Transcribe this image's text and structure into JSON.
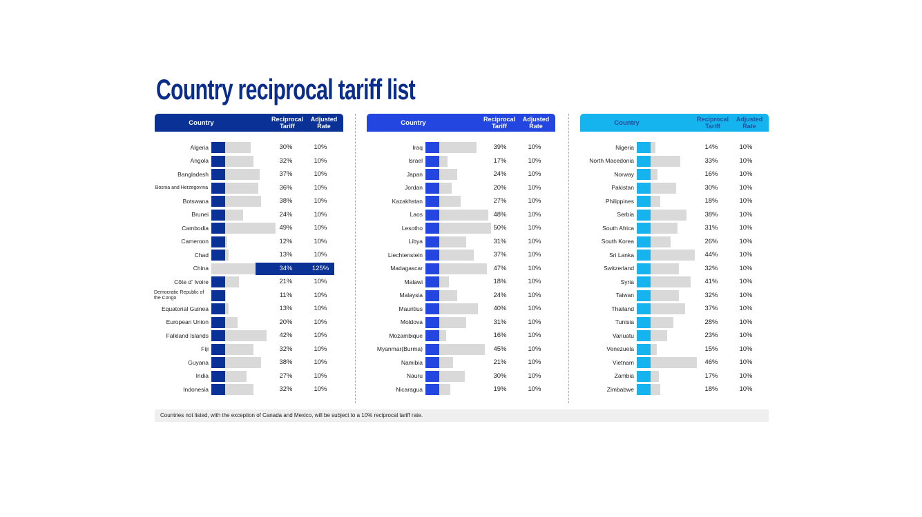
{
  "title": "Country reciprocal tariff list",
  "headers": {
    "country": "Country",
    "tariff_line1": "Reciprocal",
    "tariff_line2": "Tariff",
    "adjusted_line1": "Adjusted",
    "adjusted_line2": "Rate"
  },
  "footer": "Countries not listed, with the exception of Canada and Mexico, will be subject to a 10% reciprocal tariff rate.",
  "colors": {
    "col1": "#0a3195",
    "col2": "#2446e0",
    "col3": "#16b4ef",
    "col3_header_text": "#1f4e9a",
    "bar_gray": "#d9d9d9"
  },
  "chart_data": {
    "type": "bar",
    "title": "Country reciprocal tariff list",
    "baseline_rate": 10,
    "unit": "%",
    "columns": [
      {
        "rows": [
          {
            "country": "Algeria",
            "tariff": 30,
            "adjusted": 10,
            "tariff_label": "30%",
            "adjusted_label": "10%"
          },
          {
            "country": "Angola",
            "tariff": 32,
            "adjusted": 10,
            "tariff_label": "32%",
            "adjusted_label": "10%"
          },
          {
            "country": "Bangladesh",
            "tariff": 37,
            "adjusted": 10,
            "tariff_label": "37%",
            "adjusted_label": "10%"
          },
          {
            "country": "Bosnia and Herzegovina",
            "tariff": 36,
            "adjusted": 10,
            "tariff_label": "36%",
            "adjusted_label": "10%"
          },
          {
            "country": "Botswana",
            "tariff": 38,
            "adjusted": 10,
            "tariff_label": "38%",
            "adjusted_label": "10%"
          },
          {
            "country": "Brunei",
            "tariff": 24,
            "adjusted": 10,
            "tariff_label": "24%",
            "adjusted_label": "10%"
          },
          {
            "country": "Cambodia",
            "tariff": 49,
            "adjusted": 10,
            "tariff_label": "49%",
            "adjusted_label": "10%"
          },
          {
            "country": "Cameroon",
            "tariff": 12,
            "adjusted": 10,
            "tariff_label": "12%",
            "adjusted_label": "10%"
          },
          {
            "country": "Chad",
            "tariff": 13,
            "adjusted": 10,
            "tariff_label": "13%",
            "adjusted_label": "10%"
          },
          {
            "country": "China",
            "tariff": 34,
            "adjusted": 125,
            "tariff_label": "34%",
            "adjusted_label": "125%",
            "highlight": true
          },
          {
            "country": "Côte d' Ivoire",
            "tariff": 21,
            "adjusted": 10,
            "tariff_label": "21%",
            "adjusted_label": "10%"
          },
          {
            "country": "Democratic Republic of the Congo",
            "tariff": 11,
            "adjusted": 10,
            "tariff_label": "11%",
            "adjusted_label": "10%"
          },
          {
            "country": "Equatorial Guinea",
            "tariff": 13,
            "adjusted": 10,
            "tariff_label": "13%",
            "adjusted_label": "10%"
          },
          {
            "country": "European Union",
            "tariff": 20,
            "adjusted": 10,
            "tariff_label": "20%",
            "adjusted_label": "10%"
          },
          {
            "country": "Falkland Islands",
            "tariff": 42,
            "adjusted": 10,
            "tariff_label": "42%",
            "adjusted_label": "10%"
          },
          {
            "country": "Fiji",
            "tariff": 32,
            "adjusted": 10,
            "tariff_label": "32%",
            "adjusted_label": "10%"
          },
          {
            "country": "Guyana",
            "tariff": 38,
            "adjusted": 10,
            "tariff_label": "38%",
            "adjusted_label": "10%"
          },
          {
            "country": "India",
            "tariff": 27,
            "adjusted": 10,
            "tariff_label": "27%",
            "adjusted_label": "10%"
          },
          {
            "country": "Indonesia",
            "tariff": 32,
            "adjusted": 10,
            "tariff_label": "32%",
            "adjusted_label": "10%"
          }
        ]
      },
      {
        "rows": [
          {
            "country": "Iraq",
            "tariff": 39,
            "adjusted": 10,
            "tariff_label": "39%",
            "adjusted_label": "10%"
          },
          {
            "country": "Israel",
            "tariff": 17,
            "adjusted": 10,
            "tariff_label": "17%",
            "adjusted_label": "10%"
          },
          {
            "country": "Japan",
            "tariff": 24,
            "adjusted": 10,
            "tariff_label": "24%",
            "adjusted_label": "10%"
          },
          {
            "country": "Jordan",
            "tariff": 20,
            "adjusted": 10,
            "tariff_label": "20%",
            "adjusted_label": "10%"
          },
          {
            "country": "Kazakhstan",
            "tariff": 27,
            "adjusted": 10,
            "tariff_label": "27%",
            "adjusted_label": "10%"
          },
          {
            "country": "Laos",
            "tariff": 48,
            "adjusted": 10,
            "tariff_label": "48%",
            "adjusted_label": "10%"
          },
          {
            "country": "Lesotho",
            "tariff": 50,
            "adjusted": 10,
            "tariff_label": "50%",
            "adjusted_label": "10%"
          },
          {
            "country": "Libya",
            "tariff": 31,
            "adjusted": 10,
            "tariff_label": "31%",
            "adjusted_label": "10%"
          },
          {
            "country": "Liechtenstein",
            "tariff": 37,
            "adjusted": 10,
            "tariff_label": "37%",
            "adjusted_label": "10%"
          },
          {
            "country": "Madagascar",
            "tariff": 47,
            "adjusted": 10,
            "tariff_label": "47%",
            "adjusted_label": "10%"
          },
          {
            "country": "Malawi",
            "tariff": 18,
            "adjusted": 10,
            "tariff_label": "18%",
            "adjusted_label": "10%"
          },
          {
            "country": "Malaysia",
            "tariff": 24,
            "adjusted": 10,
            "tariff_label": "24%",
            "adjusted_label": "10%"
          },
          {
            "country": "Mauritius",
            "tariff": 40,
            "adjusted": 10,
            "tariff_label": "40%",
            "adjusted_label": "10%"
          },
          {
            "country": "Moldova",
            "tariff": 31,
            "adjusted": 10,
            "tariff_label": "31%",
            "adjusted_label": "10%"
          },
          {
            "country": "Mozambique",
            "tariff": 16,
            "adjusted": 10,
            "tariff_label": "16%",
            "adjusted_label": "10%"
          },
          {
            "country": "Myanmar(Burma)",
            "tariff": 45,
            "adjusted": 10,
            "tariff_label": "45%",
            "adjusted_label": "10%"
          },
          {
            "country": "Namibia",
            "tariff": 21,
            "adjusted": 10,
            "tariff_label": "21%",
            "adjusted_label": "10%"
          },
          {
            "country": "Nauru",
            "tariff": 30,
            "adjusted": 10,
            "tariff_label": "30%",
            "adjusted_label": "10%"
          },
          {
            "country": "Nicaragua",
            "tariff": 19,
            "adjusted": 10,
            "tariff_label": "19%",
            "adjusted_label": "10%"
          }
        ]
      },
      {
        "rows": [
          {
            "country": "Nigeria",
            "tariff": 14,
            "adjusted": 10,
            "tariff_label": "14%",
            "adjusted_label": "10%"
          },
          {
            "country": "North Macedonia",
            "tariff": 33,
            "adjusted": 10,
            "tariff_label": "33%",
            "adjusted_label": "10%"
          },
          {
            "country": "Norway",
            "tariff": 16,
            "adjusted": 10,
            "tariff_label": "16%",
            "adjusted_label": "10%"
          },
          {
            "country": "Pakistan",
            "tariff": 30,
            "adjusted": 10,
            "tariff_label": "30%",
            "adjusted_label": "10%"
          },
          {
            "country": "Philippines",
            "tariff": 18,
            "adjusted": 10,
            "tariff_label": "18%",
            "adjusted_label": "10%"
          },
          {
            "country": "Serbia",
            "tariff": 38,
            "adjusted": 10,
            "tariff_label": "38%",
            "adjusted_label": "10%"
          },
          {
            "country": "South Africa",
            "tariff": 31,
            "adjusted": 10,
            "tariff_label": "31%",
            "adjusted_label": "10%"
          },
          {
            "country": "South Korea",
            "tariff": 26,
            "adjusted": 10,
            "tariff_label": "26%",
            "adjusted_label": "10%"
          },
          {
            "country": "Sri Lanka",
            "tariff": 44,
            "adjusted": 10,
            "tariff_label": "44%",
            "adjusted_label": "10%"
          },
          {
            "country": "Switzerland",
            "tariff": 32,
            "adjusted": 10,
            "tariff_label": "32%",
            "adjusted_label": "10%"
          },
          {
            "country": "Syria",
            "tariff": 41,
            "adjusted": 10,
            "tariff_label": "41%",
            "adjusted_label": "10%"
          },
          {
            "country": "Taiwan",
            "tariff": 32,
            "adjusted": 10,
            "tariff_label": "32%",
            "adjusted_label": "10%"
          },
          {
            "country": "Thailand",
            "tariff": 37,
            "adjusted": 10,
            "tariff_label": "37%",
            "adjusted_label": "10%"
          },
          {
            "country": "Tunisia",
            "tariff": 28,
            "adjusted": 10,
            "tariff_label": "28%",
            "adjusted_label": "10%"
          },
          {
            "country": "Vanuatu",
            "tariff": 23,
            "adjusted": 10,
            "tariff_label": "23%",
            "adjusted_label": "10%"
          },
          {
            "country": "Venezuela",
            "tariff": 15,
            "adjusted": 10,
            "tariff_label": "15%",
            "adjusted_label": "10%"
          },
          {
            "country": "Vietnam",
            "tariff": 46,
            "adjusted": 10,
            "tariff_label": "46%",
            "adjusted_label": "10%"
          },
          {
            "country": "Zambia",
            "tariff": 17,
            "adjusted": 10,
            "tariff_label": "17%",
            "adjusted_label": "10%"
          },
          {
            "country": "Zimbabwe",
            "tariff": 18,
            "adjusted": 10,
            "tariff_label": "18%",
            "adjusted_label": "10%"
          }
        ]
      }
    ]
  }
}
